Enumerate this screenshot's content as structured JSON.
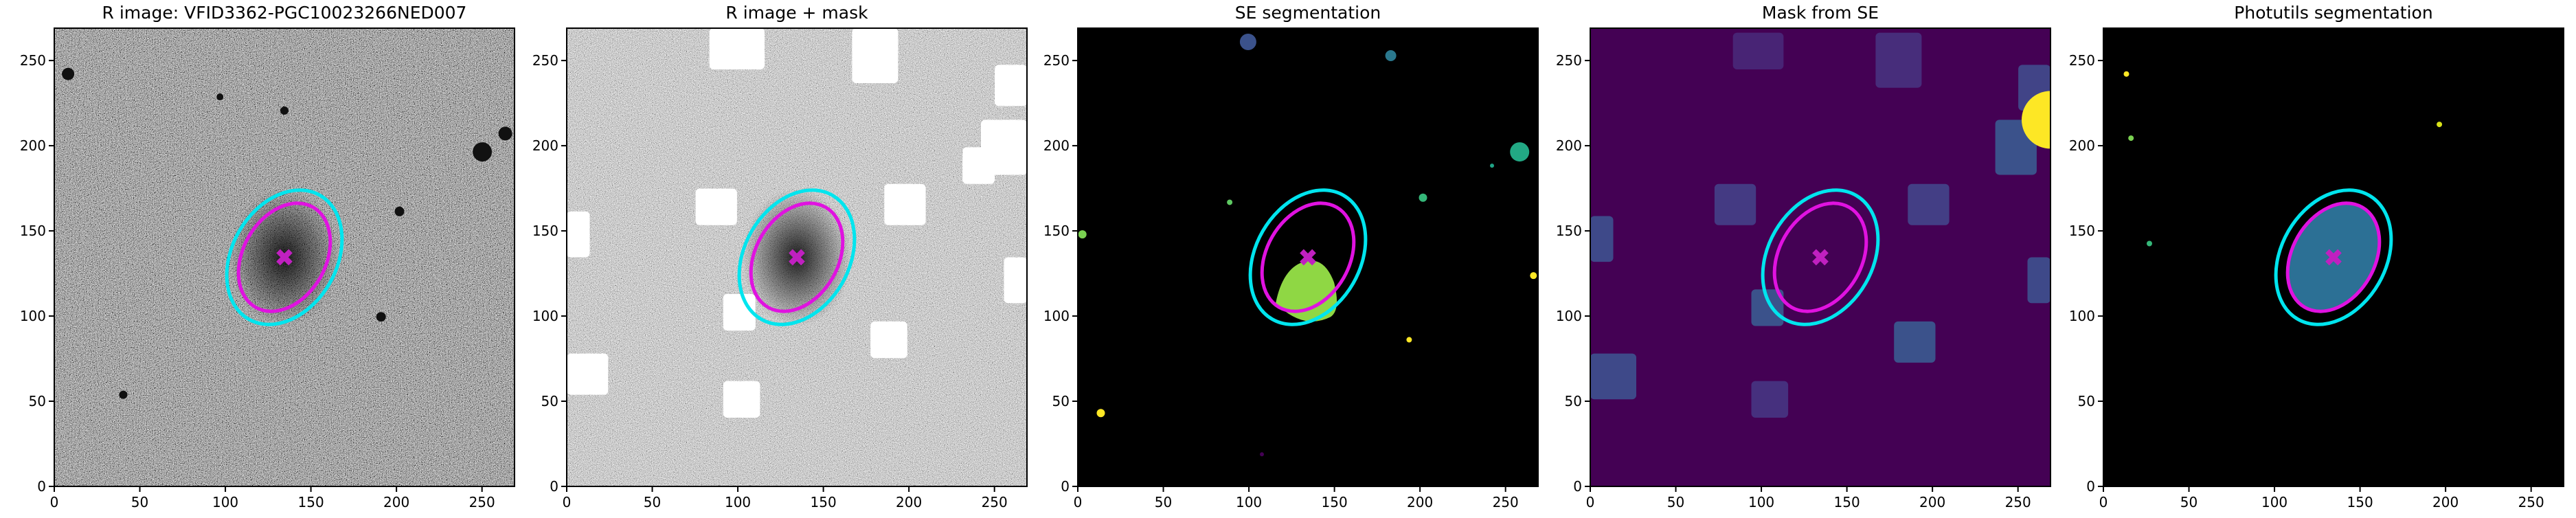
{
  "chart_data": [
    {
      "type": "image",
      "title": "R image: VFID3362-PGC10023266NED007",
      "xlim": [
        0,
        269
      ],
      "ylim": [
        0,
        269
      ],
      "xticks": [
        0,
        50,
        100,
        150,
        200,
        250
      ],
      "yticks": [
        0,
        50,
        100,
        150,
        200,
        250
      ]
    },
    {
      "type": "image",
      "title": "R image + mask",
      "xlim": [
        0,
        269
      ],
      "ylim": [
        0,
        269
      ],
      "xticks": [
        0,
        50,
        100,
        150,
        200,
        250
      ],
      "yticks": [
        0,
        50,
        100,
        150,
        200,
        250
      ]
    },
    {
      "type": "image",
      "title": "SE segmentation",
      "xlim": [
        0,
        269
      ],
      "ylim": [
        0,
        269
      ],
      "xticks": [
        0,
        50,
        100,
        150,
        200,
        250
      ],
      "yticks": [
        0,
        50,
        100,
        150,
        200,
        250
      ]
    },
    {
      "type": "image",
      "title": "Mask from SE",
      "xlim": [
        0,
        269
      ],
      "ylim": [
        0,
        269
      ],
      "xticks": [
        0,
        50,
        100,
        150,
        200,
        250
      ],
      "yticks": [
        0,
        50,
        100,
        150,
        200,
        250
      ]
    },
    {
      "type": "image",
      "title": "Photutils segmentation",
      "xlim": [
        0,
        269
      ],
      "ylim": [
        0,
        269
      ],
      "xticks": [
        0,
        50,
        100,
        150,
        200,
        250
      ],
      "yticks": [
        0,
        50,
        100,
        150,
        200,
        250
      ]
    }
  ]
}
